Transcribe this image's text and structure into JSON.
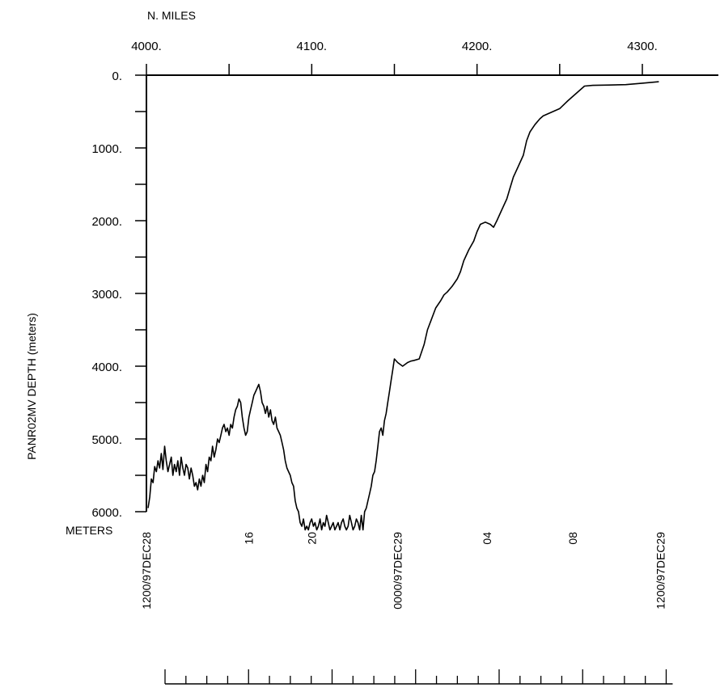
{
  "chart_data": {
    "type": "line",
    "title": "",
    "x_axis_top": {
      "label": "N. MILES",
      "range": [
        4000,
        4346
      ],
      "major_ticks": [
        4000,
        4050,
        4100,
        4150,
        4200,
        4250,
        4300
      ],
      "tick_labels": [
        {
          "value": 4000,
          "text": "4000."
        },
        {
          "value": 4100,
          "text": "4100."
        },
        {
          "value": 4200,
          "text": "4200."
        },
        {
          "value": 4300,
          "text": "4300."
        }
      ]
    },
    "y_axis": {
      "label": "PANR02MV   DEPTH  (meters)",
      "unit_label": "METERS",
      "range": [
        0,
        6000
      ],
      "inverted": true,
      "tick_labels": [
        {
          "value": 0,
          "text": "0."
        },
        {
          "value": 1000,
          "text": "1000."
        },
        {
          "value": 2000,
          "text": "2000."
        },
        {
          "value": 3000,
          "text": "3000."
        },
        {
          "value": 4000,
          "text": "4000."
        },
        {
          "value": 5000,
          "text": "5000."
        },
        {
          "value": 6000,
          "text": "6000."
        }
      ],
      "minor_ticks": [
        500,
        1500,
        2500,
        3500,
        4500,
        5500
      ]
    },
    "time_axis": {
      "labels": [
        {
          "nmi": 4000,
          "text": "1200/97DEC28"
        },
        {
          "nmi": 4062,
          "text": "16"
        },
        {
          "nmi": 4100,
          "text": "20"
        },
        {
          "nmi": 4152,
          "text": "0000/97DEC29"
        },
        {
          "nmi": 4206,
          "text": "04"
        },
        {
          "nmi": 4258,
          "text": "08"
        },
        {
          "nmi": 4311,
          "text": "1200/97DEC29"
        }
      ]
    },
    "series": [
      {
        "values_nmi": [
          4001,
          4002,
          4003,
          4004,
          4005,
          4006,
          4007,
          4008,
          4009,
          4010,
          4011,
          4012,
          4013,
          4014,
          4015,
          4016,
          4017,
          4018,
          4019,
          4020,
          4021,
          4022,
          4023,
          4024,
          4025,
          4026,
          4027,
          4028,
          4029,
          4030,
          4031,
          4032,
          4033,
          4034,
          4035,
          4036,
          4037,
          4038,
          4039,
          4040,
          4041,
          4042,
          4043,
          4044,
          4045,
          4046,
          4047,
          4048,
          4049,
          4050,
          4051,
          4052,
          4053,
          4054,
          4055,
          4056,
          4057,
          4058,
          4059,
          4060,
          4061,
          4062,
          4063,
          4064,
          4065,
          4066,
          4067,
          4068,
          4069,
          4070,
          4071,
          4072,
          4073,
          4074,
          4075,
          4076,
          4077,
          4078,
          4079,
          4080,
          4081,
          4082,
          4083,
          4084,
          4085,
          4086,
          4087,
          4088,
          4089,
          4090,
          4091,
          4092,
          4093,
          4094,
          4095,
          4096,
          4097,
          4098,
          4099,
          4100,
          4101,
          4102,
          4103,
          4104,
          4105,
          4106,
          4107,
          4108,
          4109,
          4110,
          4111,
          4112,
          4113,
          4114,
          4115,
          4116,
          4117,
          4118,
          4119,
          4120,
          4121,
          4122,
          4123,
          4124,
          4125,
          4126,
          4127,
          4128,
          4129,
          4130,
          4131,
          4132,
          4133,
          4134,
          4135,
          4136,
          4137,
          4138,
          4139,
          4140,
          4141,
          4142,
          4143,
          4144,
          4145,
          4146,
          4147,
          4148,
          4149,
          4150,
          4152,
          4155,
          4158,
          4160,
          4162,
          4165,
          4168,
          4170,
          4172,
          4175,
          4178,
          4180,
          4182,
          4185,
          4188,
          4190,
          4192,
          4195,
          4198,
          4200,
          4202,
          4205,
          4208,
          4210,
          4212,
          4215,
          4218,
          4220,
          4222,
          4225,
          4228,
          4230,
          4232,
          4235,
          4238,
          4240,
          4245,
          4250,
          4255,
          4260,
          4265,
          4270,
          4280,
          4290,
          4300,
          4310
        ],
        "values_depth": [
          5950,
          5800,
          5550,
          5600,
          5380,
          5450,
          5300,
          5400,
          5200,
          5420,
          5100,
          5300,
          5450,
          5350,
          5250,
          5500,
          5350,
          5450,
          5300,
          5500,
          5250,
          5400,
          5500,
          5350,
          5400,
          5550,
          5400,
          5500,
          5650,
          5600,
          5700,
          5550,
          5650,
          5500,
          5600,
          5350,
          5450,
          5250,
          5300,
          5100,
          5250,
          5150,
          5000,
          5050,
          4950,
          4850,
          4800,
          4900,
          4850,
          4950,
          4800,
          4850,
          4700,
          4600,
          4550,
          4450,
          4500,
          4700,
          4850,
          4950,
          4900,
          4700,
          4600,
          4500,
          4400,
          4350,
          4300,
          4250,
          4350,
          4500,
          4550,
          4650,
          4550,
          4700,
          4600,
          4750,
          4800,
          4700,
          4850,
          4900,
          4950,
          5050,
          5150,
          5300,
          5400,
          5450,
          5500,
          5600,
          5650,
          5850,
          5950,
          6000,
          6150,
          6200,
          6100,
          6250,
          6200,
          6250,
          6150,
          6100,
          6200,
          6150,
          6250,
          6200,
          6100,
          6250,
          6150,
          6200,
          6050,
          6150,
          6250,
          6200,
          6150,
          6250,
          6200,
          6150,
          6250,
          6150,
          6100,
          6200,
          6250,
          6200,
          6050,
          6150,
          6250,
          6200,
          6100,
          6150,
          6250,
          6050,
          6250,
          6000,
          5950,
          5850,
          5750,
          5650,
          5500,
          5450,
          5300,
          5100,
          4900,
          4850,
          4950,
          4750,
          4650,
          4500,
          4350,
          4200,
          4050,
          3900,
          3950,
          4000,
          3950,
          3930,
          3920,
          3900,
          3700,
          3500,
          3380,
          3200,
          3100,
          3020,
          2980,
          2900,
          2800,
          2700,
          2550,
          2400,
          2280,
          2150,
          2050,
          2020,
          2050,
          2090,
          2000,
          1850,
          1700,
          1550,
          1400,
          1250,
          1100,
          900,
          780,
          680,
          600,
          560,
          510,
          460,
          350,
          250,
          150,
          140,
          135,
          130,
          110,
          90
        ]
      }
    ]
  }
}
